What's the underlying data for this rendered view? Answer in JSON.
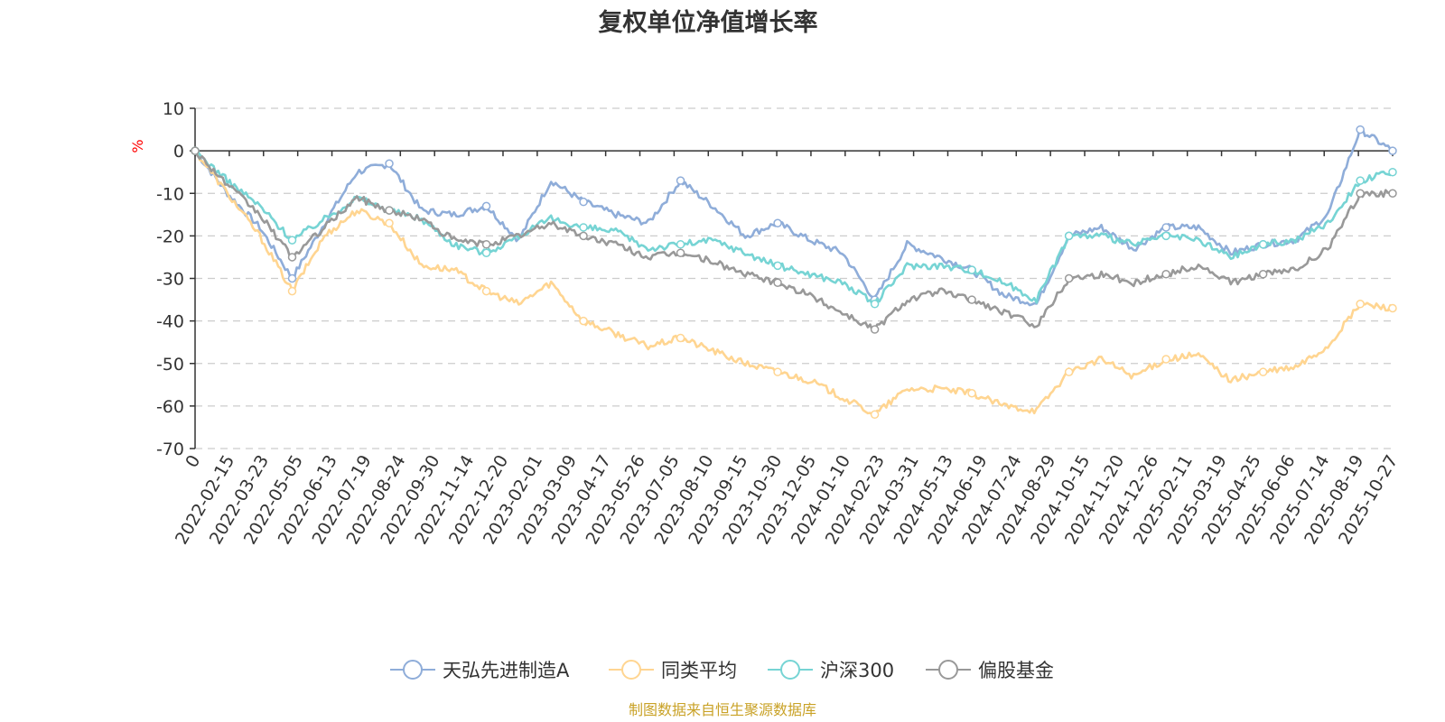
{
  "chart_data": {
    "type": "line",
    "title": "复权单位净值增长率",
    "ylabel": "%",
    "ylim": [
      -70,
      10
    ],
    "yticks": [
      10,
      0,
      -10,
      -20,
      -30,
      -40,
      -50,
      -60,
      -70
    ],
    "x_tick_labels": [
      "0",
      "2022-02-15",
      "2022-03-23",
      "2022-05-05",
      "2022-06-13",
      "2022-07-19",
      "2022-08-24",
      "2022-09-30",
      "2022-11-14",
      "2022-12-20",
      "2023-02-01",
      "2023-03-09",
      "2023-04-17",
      "2023-05-26",
      "2023-07-05",
      "2023-08-10",
      "2023-09-15",
      "2023-10-30",
      "2023-12-05",
      "2024-01-10",
      "2024-02-23",
      "2024-03-31",
      "2024-05-13",
      "2024-06-19",
      "2024-07-24",
      "2024-08-29",
      "2024-10-15",
      "2024-11-20",
      "2024-12-26",
      "2025-02-11",
      "2025-03-19",
      "2025-04-25",
      "2025-06-06",
      "2025-07-14",
      "2025-08-19",
      "2025-10-27"
    ],
    "grid": "horizontal dashed",
    "legend_position": "bottom",
    "series": [
      {
        "name": "天弘先进制造A",
        "color": "#8fadd9",
        "values": [
          0,
          -10,
          -18,
          -30,
          -17,
          -5,
          -3,
          -14,
          -15,
          -13,
          -21,
          -7,
          -12,
          -15,
          -17,
          -7,
          -13,
          -20,
          -17,
          -21,
          -24,
          -35,
          -22,
          -25,
          -28,
          -34,
          -36,
          -20,
          -18,
          -23,
          -18,
          -18,
          -24,
          -22,
          -21,
          -15,
          5,
          0
        ]
      },
      {
        "name": "同类平均",
        "color": "#ffd591",
        "values": [
          0,
          -10,
          -20,
          -33,
          -20,
          -14,
          -17,
          -27,
          -28,
          -33,
          -36,
          -31,
          -40,
          -43,
          -46,
          -44,
          -47,
          -50,
          -52,
          -54,
          -58,
          -62,
          -56,
          -56,
          -57,
          -60,
          -61,
          -52,
          -49,
          -53,
          -49,
          -48,
          -54,
          -52,
          -51,
          -46,
          -36,
          -37
        ]
      },
      {
        "name": "沪深300",
        "color": "#76d4d4",
        "values": [
          0,
          -7,
          -13,
          -21,
          -16,
          -11,
          -14,
          -16,
          -22,
          -24,
          -20,
          -16,
          -18,
          -19,
          -23,
          -22,
          -21,
          -24,
          -27,
          -29,
          -31,
          -36,
          -27,
          -27,
          -28,
          -31,
          -35,
          -20,
          -20,
          -22,
          -20,
          -21,
          -25,
          -22,
          -21,
          -17,
          -7,
          -5
        ]
      },
      {
        "name": "偏股基金",
        "color": "#999999",
        "values": [
          0,
          -8,
          -15,
          -25,
          -18,
          -11,
          -14,
          -16,
          -21,
          -22,
          -20,
          -17,
          -20,
          -22,
          -25,
          -24,
          -26,
          -29,
          -31,
          -34,
          -38,
          -42,
          -35,
          -33,
          -35,
          -38,
          -41,
          -30,
          -29,
          -31,
          -29,
          -27,
          -31,
          -29,
          -28,
          -23,
          -10,
          -10
        ]
      }
    ]
  },
  "source": "制图数据来自恒生聚源数据库"
}
